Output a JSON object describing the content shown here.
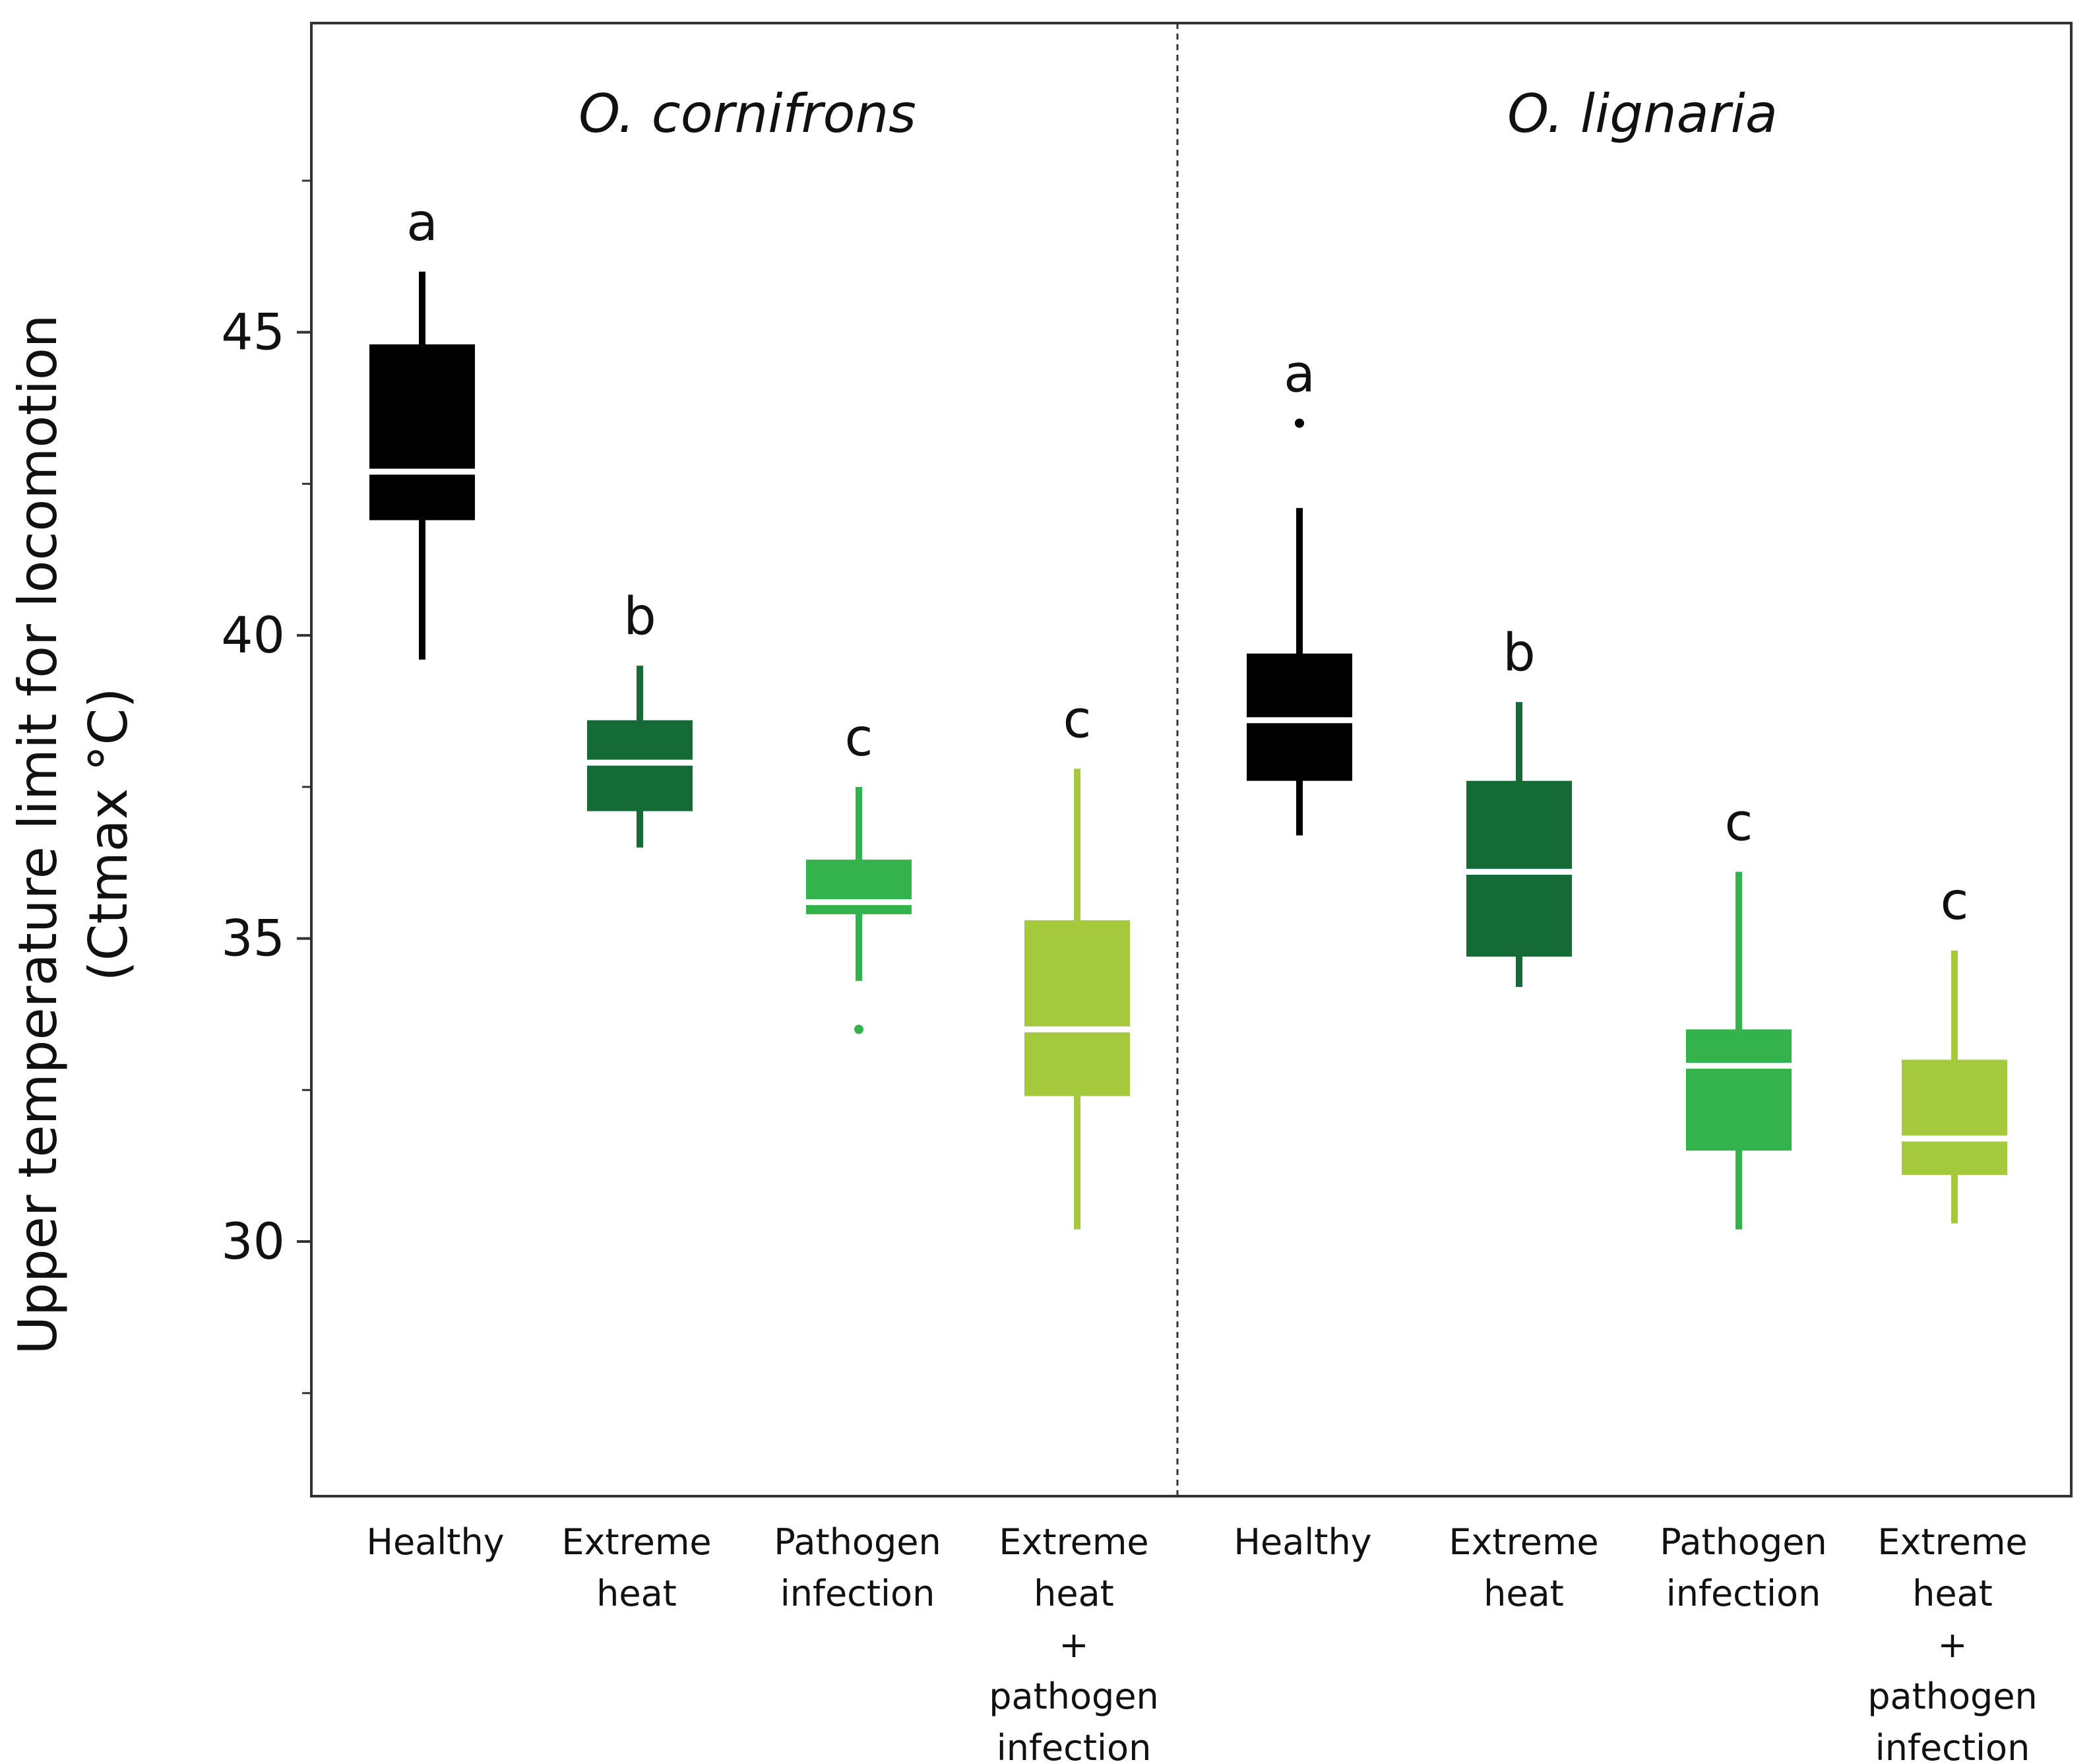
{
  "chart_data": {
    "type": "box",
    "ylabel_line1": "Upper temperature limit for locomotion",
    "ylabel_line2": "(Ctmax °C)",
    "ylim": [
      25.8,
      50.1
    ],
    "yticks": [
      30,
      35,
      40,
      45
    ],
    "minor_ticks": [
      27.5,
      32.5,
      37.5,
      42.5,
      47.5
    ],
    "panels": [
      {
        "title": "O. cornifrons",
        "boxes": [
          {
            "label_lines": [
              "Healthy"
            ],
            "color": "#000000",
            "whisker_low": 39.6,
            "q1": 41.9,
            "median": 42.7,
            "q3": 44.8,
            "whisker_high": 46.0,
            "outliers": [],
            "letter": "a"
          },
          {
            "label_lines": [
              "Extreme",
              "heat"
            ],
            "color": "#156b36",
            "whisker_low": 36.5,
            "q1": 37.1,
            "median": 37.9,
            "q3": 38.6,
            "whisker_high": 39.5,
            "outliers": [],
            "letter": "b"
          },
          {
            "label_lines": [
              "Pathogen",
              "infection"
            ],
            "color": "#34b24b",
            "whisker_low": 34.3,
            "q1": 35.4,
            "median": 35.6,
            "q3": 36.3,
            "whisker_high": 37.5,
            "outliers": [
              33.5
            ],
            "letter": "c"
          },
          {
            "label_lines": [
              "Extreme",
              "heat",
              "+",
              "pathogen",
              "infection"
            ],
            "color": "#a4c93c",
            "whisker_low": 30.2,
            "q1": 32.4,
            "median": 33.5,
            "q3": 35.3,
            "whisker_high": 37.8,
            "outliers": [],
            "letter": "c"
          }
        ]
      },
      {
        "title": "O. lignaria",
        "boxes": [
          {
            "label_lines": [
              "Healthy"
            ],
            "color": "#000000",
            "whisker_low": 36.7,
            "q1": 37.6,
            "median": 38.6,
            "q3": 39.7,
            "whisker_high": 42.1,
            "outliers": [
              43.5
            ],
            "letter": "a"
          },
          {
            "label_lines": [
              "Extreme",
              "heat"
            ],
            "color": "#156b36",
            "whisker_low": 34.2,
            "q1": 34.7,
            "median": 36.1,
            "q3": 37.6,
            "whisker_high": 38.9,
            "outliers": [],
            "letter": "b"
          },
          {
            "label_lines": [
              "Pathogen",
              "infection"
            ],
            "color": "#34b24b",
            "whisker_low": 30.2,
            "q1": 31.5,
            "median": 32.9,
            "q3": 33.5,
            "whisker_high": 36.1,
            "outliers": [],
            "letter": "c"
          },
          {
            "label_lines": [
              "Extreme",
              "heat",
              "+",
              "pathogen",
              "infection"
            ],
            "color": "#a4c93c",
            "whisker_low": 30.3,
            "q1": 31.1,
            "median": 31.7,
            "q3": 33.0,
            "whisker_high": 34.8,
            "outliers": [],
            "letter": "c"
          }
        ]
      }
    ]
  }
}
